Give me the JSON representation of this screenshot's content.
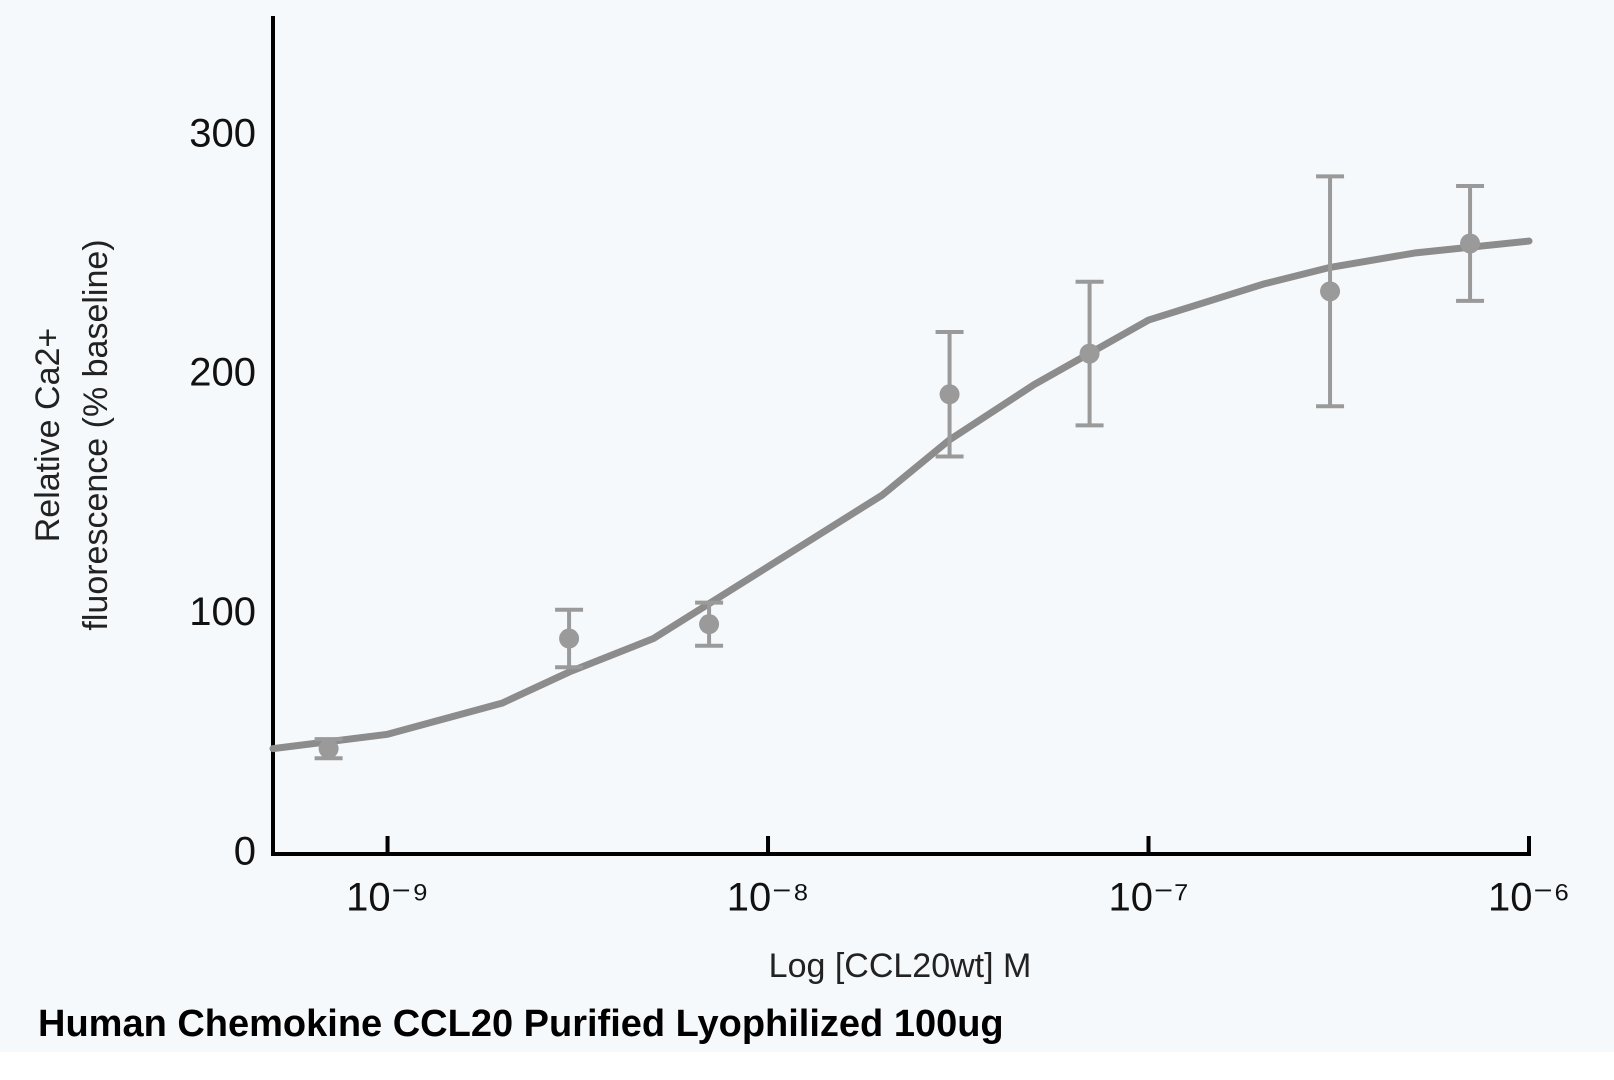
{
  "chart_data": {
    "type": "scatter",
    "title": "Human Chemokine CCL20 Purified Lyophilized 100ug",
    "x_label": "Log [CCL20wt] M",
    "y_label": [
      "Relative Ca2+",
      "fluorescence (% baseline)"
    ],
    "x_scale": "log",
    "xlim": [
      5e-10,
      1e-06
    ],
    "xticks": [
      {
        "value": 1e-09,
        "label": "10⁻⁹"
      },
      {
        "value": 1e-08,
        "label": "10⁻⁸"
      },
      {
        "value": 1e-07,
        "label": "10⁻⁷"
      },
      {
        "value": 1e-06,
        "label": "10⁻⁶"
      }
    ],
    "ylim": [
      0,
      350
    ],
    "yticks": [
      0,
      100,
      200,
      300
    ],
    "points": {
      "color": "#9a9a9a",
      "x": [
        7e-10,
        3e-09,
        7e-09,
        3e-08,
        7e-08,
        3e-07,
        7e-07
      ],
      "values": [
        44,
        90,
        96,
        192,
        209,
        235,
        255
      ],
      "errors": [
        4,
        12,
        9,
        26,
        30,
        48,
        24
      ]
    },
    "fit": {
      "color": "#8c8c8c",
      "x": [
        5e-10,
        1e-09,
        2e-09,
        3e-09,
        5e-09,
        1e-08,
        2e-08,
        3e-08,
        5e-08,
        1e-07,
        2e-07,
        3e-07,
        5e-07,
        1e-06
      ],
      "values": [
        44,
        50,
        63,
        76,
        90,
        120,
        150,
        173,
        196,
        223,
        238,
        245,
        251,
        256
      ]
    }
  }
}
